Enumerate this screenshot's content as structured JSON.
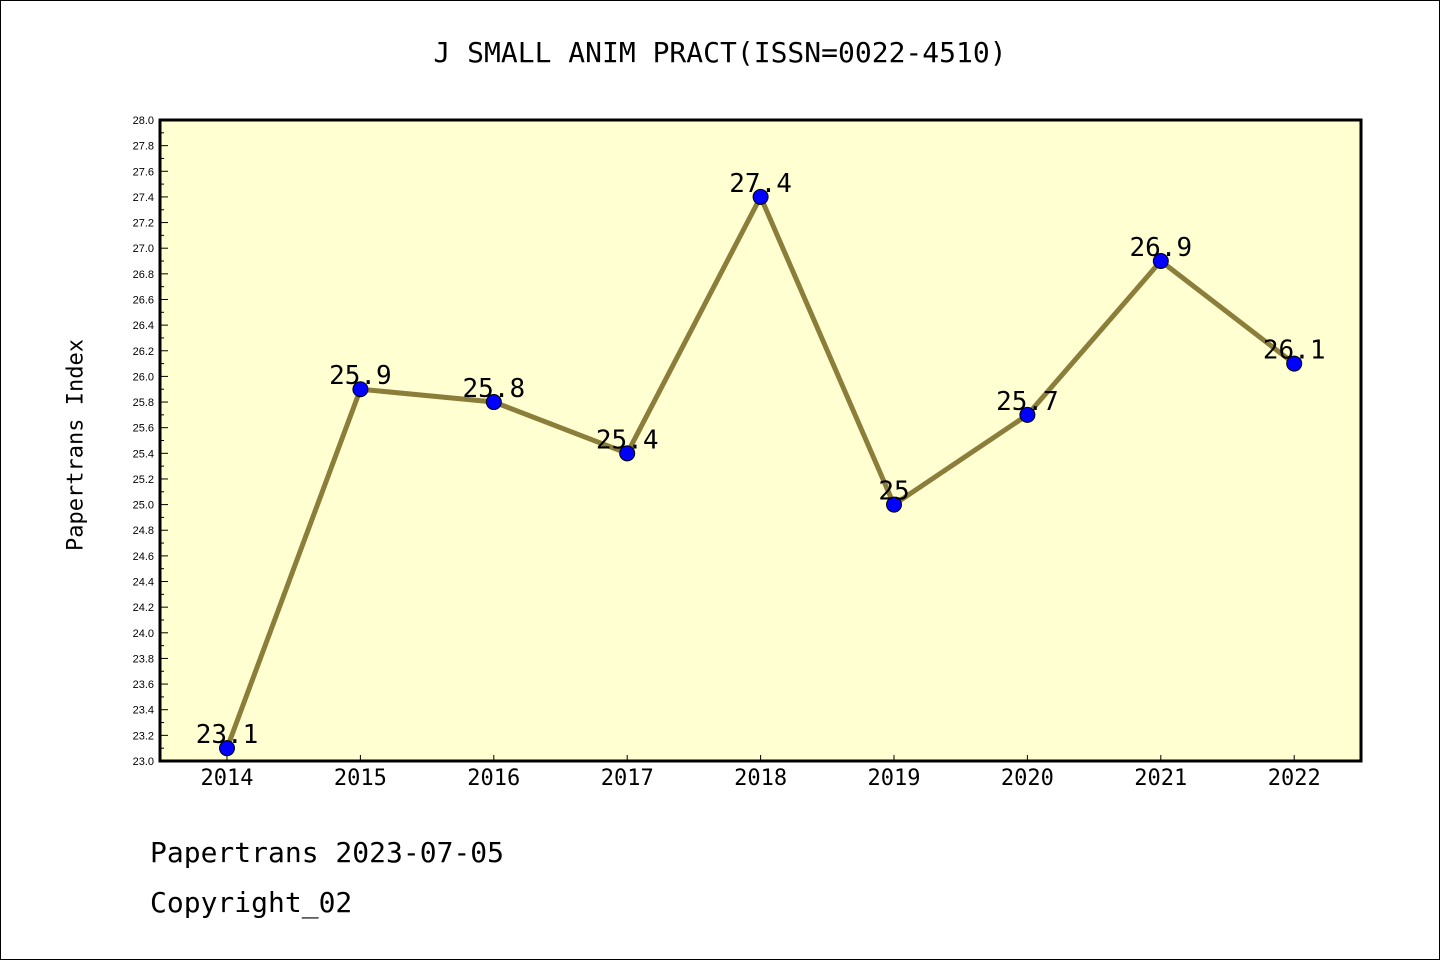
{
  "title": "J SMALL ANIM PRACT(ISSN=0022-4510)",
  "footer": {
    "line1": "Papertrans 2023-07-05",
    "line2": "Copyright_02"
  },
  "colors": {
    "plot_background": "#ffffd2",
    "line": "#8b7d3a",
    "marker": "#0000ff"
  },
  "chart_data": {
    "type": "line",
    "title": "J SMALL ANIM PRACT(ISSN=0022-4510)",
    "xlabel": "",
    "ylabel": "Papertrans Index",
    "categories": [
      "2014",
      "2015",
      "2016",
      "2017",
      "2018",
      "2019",
      "2020",
      "2021",
      "2022"
    ],
    "series": [
      {
        "values": [
          23.1,
          25.9,
          25.8,
          25.4,
          27.4,
          25.0,
          25.7,
          26.9,
          26.1
        ],
        "labels": [
          "23.1",
          "25.9",
          "25.8",
          "25.4",
          "27.4",
          "25",
          "25.7",
          "26.9",
          "26.1"
        ]
      }
    ],
    "ylim": [
      23.0,
      28.0
    ],
    "yticks": [
      "23.0",
      "23.2",
      "23.4",
      "23.6",
      "23.8",
      "24.0",
      "24.2",
      "24.4",
      "24.6",
      "24.8",
      "25.0",
      "25.2",
      "25.4",
      "25.6",
      "25.8",
      "26.0",
      "26.2",
      "26.4",
      "26.6",
      "26.8",
      "27.0",
      "27.2",
      "27.4",
      "27.6",
      "27.8",
      "28.0"
    ],
    "grid": false,
    "legend": "none"
  }
}
